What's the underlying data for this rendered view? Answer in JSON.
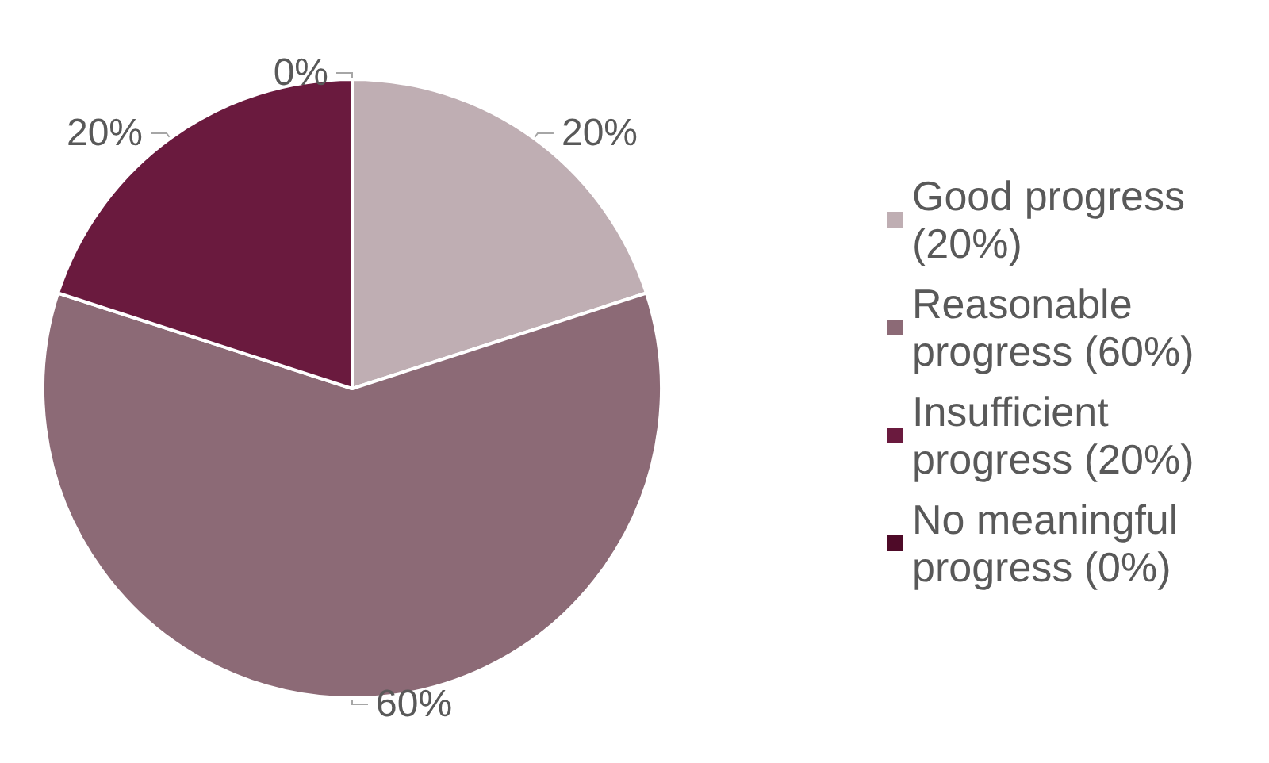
{
  "chart_data": {
    "type": "pie",
    "categories": [
      "Good progress (20%)",
      "Reasonable progress (60%)",
      "Insufficient progress (20%)",
      "No meaningful progress (0%)"
    ],
    "values": [
      20,
      60,
      20,
      0
    ],
    "colors": [
      "#bfaeb3",
      "#8c6a76",
      "#6a1a3e",
      "#4e0a28"
    ],
    "value_labels": [
      "20%",
      "60%",
      "20%",
      "0%"
    ],
    "legend": "right"
  }
}
